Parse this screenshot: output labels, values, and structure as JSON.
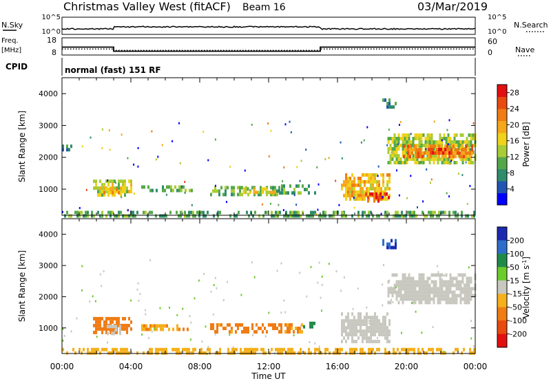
{
  "header": {
    "station": "Christmas Valley West (fitACF)",
    "beam": "Beam 16",
    "date": "03/Mar/2019"
  },
  "panels": {
    "nsky": {
      "left_label": "N.Sky",
      "left_ticks": [
        "10^5",
        "10^0"
      ],
      "right_ticks": [
        "10^5",
        "10^0"
      ],
      "right_label": "N.Search"
    },
    "freq": {
      "left_label_line1": "Freq.",
      "left_label_line2": "[MHz]",
      "left_ticks": [
        "18",
        "8"
      ],
      "right_ticks": [
        "60",
        "0"
      ],
      "right_label": "Nave",
      "freq_steps": [
        {
          "start_h": 0,
          "end_h": 3.0,
          "value_mhz": 12.6
        },
        {
          "start_h": 3.0,
          "end_h": 15.0,
          "value_mhz": 10.2
        },
        {
          "start_h": 15.0,
          "end_h": 24.0,
          "value_mhz": 12.6
        }
      ],
      "nave_steps": [
        {
          "start_h": 0,
          "end_h": 3.0,
          "value": 21
        },
        {
          "start_h": 3.0,
          "end_h": 15.0,
          "value": 16
        },
        {
          "start_h": 15.0,
          "end_h": 24.0,
          "value": 21
        }
      ]
    },
    "cpid": {
      "label": "CPID",
      "text": "normal (fast) 151 RF"
    }
  },
  "chart_data": [
    {
      "type": "heatmap",
      "name": "power",
      "ylabel": "Slant Range [km]",
      "xlabel": "",
      "x_ticks": [
        "00:00",
        "04:00",
        "08:00",
        "12:00",
        "16:00",
        "20:00",
        "00:00"
      ],
      "xlim_hours": [
        0,
        24
      ],
      "y_ticks": [
        1000,
        2000,
        3000,
        4000
      ],
      "ylim_km": [
        180,
        4500
      ],
      "colorbar": {
        "label": "Power [dB]",
        "range": [
          0,
          30
        ],
        "ticks": [
          4,
          8,
          12,
          16,
          20,
          24,
          28
        ],
        "colors": [
          "#0000ff",
          "#2155b2",
          "#2f8c6c",
          "#55a84a",
          "#a8cc36",
          "#f0d21c",
          "#f5a81c",
          "#f07c14",
          "#e84a10",
          "#e21010"
        ]
      },
      "regions": [
        {
          "t0": 0.0,
          "t1": 0.6,
          "r0": 2200,
          "r1": 2400,
          "value": 8
        },
        {
          "t0": 1.8,
          "t1": 4.0,
          "r0": 800,
          "r1": 1300,
          "value": 15
        },
        {
          "t0": 2.4,
          "t1": 3.4,
          "r0": 850,
          "r1": 1050,
          "value": 20
        },
        {
          "t0": 4.6,
          "t1": 7.6,
          "r0": 920,
          "r1": 1120,
          "value": 10
        },
        {
          "t0": 8.6,
          "t1": 12.6,
          "r0": 880,
          "r1": 1100,
          "value": 11
        },
        {
          "t0": 10.5,
          "t1": 12.4,
          "r0": 940,
          "r1": 1060,
          "value": 15
        },
        {
          "t0": 12.6,
          "t1": 14.7,
          "r0": 920,
          "r1": 1150,
          "value": 10
        },
        {
          "t0": 16.2,
          "t1": 19.0,
          "r0": 700,
          "r1": 1500,
          "value": 18
        },
        {
          "t0": 17.6,
          "t1": 19.0,
          "r0": 650,
          "r1": 900,
          "value": 27
        },
        {
          "t0": 18.9,
          "t1": 24.0,
          "r0": 1800,
          "r1": 2750,
          "value": 14
        },
        {
          "t0": 19.8,
          "t1": 23.8,
          "r0": 2050,
          "r1": 2400,
          "value": 22
        },
        {
          "t0": 21.0,
          "t1": 22.6,
          "r0": 2100,
          "r1": 2300,
          "value": 26
        },
        {
          "t0": 18.6,
          "t1": 19.4,
          "r0": 3600,
          "r1": 3850,
          "value": 6
        },
        {
          "t0": 0.0,
          "t1": 24.0,
          "r0": 180,
          "r1": 320,
          "value": 10
        }
      ]
    },
    {
      "type": "heatmap",
      "name": "velocity",
      "ylabel": "Slant Range [km]",
      "xlabel": "Time UT",
      "x_ticks": [
        "00:00",
        "04:00",
        "08:00",
        "12:00",
        "16:00",
        "20:00",
        "00:00"
      ],
      "xlim_hours": [
        0,
        24
      ],
      "y_ticks": [
        1000,
        2000,
        3000,
        4000
      ],
      "ylim_km": [
        180,
        4500
      ],
      "colorbar": {
        "label": "Velocity [m s^-1]",
        "tick_labels": [
          "200",
          "100",
          "50",
          "15",
          "-15",
          "-50",
          "-100",
          "-200"
        ],
        "colors": [
          "#1c2ab0",
          "#2f6ec8",
          "#1f8a4a",
          "#6ccc2c",
          "#c8c8c0",
          "#f5b01c",
          "#f07c14",
          "#e84a10",
          "#e21010"
        ]
      },
      "regions": [
        {
          "t0": 1.8,
          "t1": 4.0,
          "r0": 800,
          "r1": 1350,
          "value": -60
        },
        {
          "t0": 2.6,
          "t1": 3.4,
          "r0": 820,
          "r1": 1100,
          "value": 0
        },
        {
          "t0": 4.6,
          "t1": 7.6,
          "r0": 920,
          "r1": 1120,
          "value": -30
        },
        {
          "t0": 8.6,
          "t1": 14.0,
          "r0": 880,
          "r1": 1150,
          "value": -35
        },
        {
          "t0": 14.0,
          "t1": 14.7,
          "r0": 1000,
          "r1": 1200,
          "value": 40
        },
        {
          "t0": 16.2,
          "t1": 19.0,
          "r0": 600,
          "r1": 1500,
          "value": 0
        },
        {
          "t0": 18.9,
          "t1": 24.0,
          "r0": 1800,
          "r1": 2750,
          "value": 0
        },
        {
          "t0": 18.6,
          "t1": 19.4,
          "r0": 3600,
          "r1": 3850,
          "value": 150
        },
        {
          "t0": 0.0,
          "t1": 24.0,
          "r0": 180,
          "r1": 360,
          "value": -25
        }
      ]
    }
  ]
}
